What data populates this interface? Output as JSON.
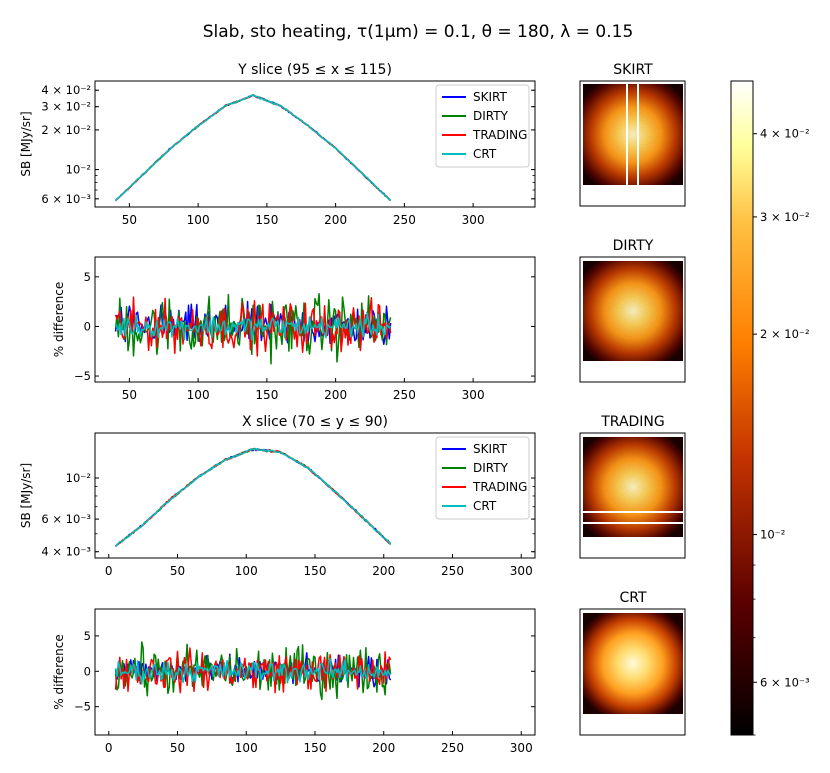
{
  "figure": {
    "suptitle": "Slab, sto heating, τ(1μm) = 0.1, θ = 180, λ = 0.15"
  },
  "colors": {
    "SKIRT": "#0000ff",
    "DIRTY": "#008000",
    "TRADING": "#ff0000",
    "CRT": "#00bfbf"
  },
  "chart_data": [
    {
      "id": "y_slice_sb",
      "type": "line",
      "title": "Y slice (95 ≤ x ≤ 115)",
      "xlabel": "",
      "ylabel": "SB [MJy/sr]",
      "yscale": "log",
      "xlim": [
        25,
        345
      ],
      "ylim": [
        0.0052,
        0.047
      ],
      "xticks": [
        50,
        100,
        150,
        200,
        250,
        300
      ],
      "yticks": [
        {
          "v": 0.04,
          "label": "4 × 10⁻²"
        },
        {
          "v": 0.03,
          "label": "3 × 10⁻²"
        },
        {
          "v": 0.02,
          "label": "2 × 10⁻²"
        },
        {
          "v": 0.01,
          "label": "10⁻²"
        },
        {
          "v": 0.006,
          "label": "6 × 10⁻³"
        }
      ],
      "legend": {
        "location": "upper right",
        "entries": [
          "SKIRT",
          "DIRTY",
          "TRADING",
          "CRT"
        ]
      },
      "series": [
        {
          "name": "SKIRT",
          "x": [
            40,
            60,
            80,
            100,
            120,
            140,
            160,
            180,
            200,
            220,
            240
          ],
          "values": [
            0.0058,
            0.0092,
            0.0145,
            0.0215,
            0.0305,
            0.0365,
            0.0305,
            0.0215,
            0.0145,
            0.0092,
            0.0058
          ]
        },
        {
          "name": "DIRTY",
          "x": [
            40,
            60,
            80,
            100,
            120,
            140,
            160,
            180,
            200,
            220,
            240
          ],
          "values": [
            0.0058,
            0.0092,
            0.0145,
            0.0215,
            0.0305,
            0.0365,
            0.0305,
            0.0215,
            0.0145,
            0.0092,
            0.0058
          ]
        },
        {
          "name": "TRADING",
          "x": [
            40,
            60,
            80,
            100,
            120,
            140,
            160,
            180,
            200,
            220,
            240
          ],
          "values": [
            0.0058,
            0.0092,
            0.0145,
            0.0215,
            0.0305,
            0.0365,
            0.0305,
            0.0215,
            0.0145,
            0.0092,
            0.0058
          ]
        },
        {
          "name": "CRT",
          "x": [
            40,
            60,
            80,
            100,
            120,
            140,
            160,
            180,
            200,
            220,
            240
          ],
          "values": [
            0.0058,
            0.0092,
            0.0145,
            0.0215,
            0.0305,
            0.0365,
            0.0305,
            0.0215,
            0.0145,
            0.0092,
            0.0058
          ]
        }
      ]
    },
    {
      "id": "y_slice_diff",
      "type": "line",
      "title": "",
      "xlabel": "",
      "ylabel": "% difference",
      "xlim": [
        25,
        345
      ],
      "ylim": [
        -5.6,
        7.0
      ],
      "xticks": [
        50,
        100,
        150,
        200,
        250,
        300
      ],
      "yticks": [
        {
          "v": 5,
          "label": "5"
        },
        {
          "v": 0,
          "label": "0"
        },
        {
          "v": -5,
          "label": "−5"
        }
      ],
      "series": [
        {
          "name": "SKIRT",
          "x": [
            40,
            240
          ],
          "values": [
            0,
            0
          ],
          "noise_amplitude": 3.0
        },
        {
          "name": "DIRTY",
          "x": [
            40,
            240
          ],
          "values": [
            0,
            0
          ],
          "noise_amplitude": 4.5
        },
        {
          "name": "TRADING",
          "x": [
            40,
            240
          ],
          "values": [
            0,
            0
          ],
          "noise_amplitude": 3.5
        },
        {
          "name": "CRT",
          "x": [
            40,
            240
          ],
          "values": [
            0,
            0
          ],
          "noise_amplitude": 1.6
        }
      ]
    },
    {
      "id": "x_slice_sb",
      "type": "line",
      "title": "X slice (70 ≤ y ≤ 90)",
      "xlabel": "",
      "ylabel": "SB [MJy/sr]",
      "yscale": "log",
      "xlim": [
        -10,
        310
      ],
      "ylim": [
        0.0037,
        0.0175
      ],
      "xticks": [
        0,
        50,
        100,
        150,
        200,
        250,
        300
      ],
      "yticks": [
        {
          "v": 0.01,
          "label": "10⁻²"
        },
        {
          "v": 0.006,
          "label": "6 × 10⁻³"
        },
        {
          "v": 0.004,
          "label": "4 × 10⁻³"
        }
      ],
      "legend": {
        "location": "upper right",
        "entries": [
          "SKIRT",
          "DIRTY",
          "TRADING",
          "CRT"
        ]
      },
      "series": [
        {
          "name": "SKIRT",
          "x": [
            5,
            25,
            45,
            65,
            85,
            105,
            125,
            145,
            165,
            185,
            205
          ],
          "values": [
            0.0043,
            0.0056,
            0.0077,
            0.0101,
            0.0126,
            0.0143,
            0.0138,
            0.0113,
            0.0084,
            0.0061,
            0.0044
          ]
        },
        {
          "name": "DIRTY",
          "x": [
            5,
            25,
            45,
            65,
            85,
            105,
            125,
            145,
            165,
            185,
            205
          ],
          "values": [
            0.0043,
            0.0056,
            0.0077,
            0.0101,
            0.0126,
            0.0143,
            0.0138,
            0.0113,
            0.0084,
            0.0061,
            0.0044
          ]
        },
        {
          "name": "TRADING",
          "x": [
            5,
            25,
            45,
            65,
            85,
            105,
            125,
            145,
            165,
            185,
            205
          ],
          "values": [
            0.0043,
            0.0056,
            0.0077,
            0.0101,
            0.0126,
            0.0143,
            0.0138,
            0.0113,
            0.0084,
            0.0061,
            0.0044
          ]
        },
        {
          "name": "CRT",
          "x": [
            5,
            25,
            45,
            65,
            85,
            105,
            125,
            145,
            165,
            185,
            205
          ],
          "values": [
            0.0043,
            0.0056,
            0.0077,
            0.0101,
            0.0126,
            0.0143,
            0.0138,
            0.0113,
            0.0084,
            0.0061,
            0.0044
          ]
        }
      ]
    },
    {
      "id": "x_slice_diff",
      "type": "line",
      "title": "",
      "xlabel": "",
      "ylabel": "% difference",
      "xlim": [
        -10,
        310
      ],
      "ylim": [
        -9.0,
        8.8
      ],
      "xticks": [
        0,
        50,
        100,
        150,
        200,
        250,
        300
      ],
      "yticks": [
        {
          "v": 5,
          "label": "5"
        },
        {
          "v": 0,
          "label": "0"
        },
        {
          "v": -5,
          "label": "−5"
        }
      ],
      "series": [
        {
          "name": "SKIRT",
          "x": [
            5,
            205
          ],
          "values": [
            0,
            0
          ],
          "noise_amplitude": 3.0
        },
        {
          "name": "DIRTY",
          "x": [
            5,
            205
          ],
          "values": [
            0,
            0
          ],
          "noise_amplitude": 5.0
        },
        {
          "name": "TRADING",
          "x": [
            5,
            205
          ],
          "values": [
            0,
            0
          ],
          "noise_amplitude": 4.0
        },
        {
          "name": "CRT",
          "x": [
            5,
            205
          ],
          "values": [
            0,
            0
          ],
          "noise_amplitude": 2.2
        }
      ]
    },
    {
      "id": "images",
      "type": "heatmap",
      "colormap": "afmhot",
      "panels": [
        {
          "title": "SKIRT",
          "markers": "vertical slice band"
        },
        {
          "title": "DIRTY",
          "markers": ""
        },
        {
          "title": "TRADING",
          "markers": "horizontal slice band"
        },
        {
          "title": "CRT",
          "markers": ""
        }
      ]
    },
    {
      "id": "colorbar",
      "type": "heatmap",
      "colormap": "afmhot",
      "scale": "log",
      "range": [
        0.005,
        0.048
      ],
      "ticks": [
        {
          "v": 0.04,
          "label": "4 × 10⁻²"
        },
        {
          "v": 0.03,
          "label": "3 × 10⁻²"
        },
        {
          "v": 0.02,
          "label": "2 × 10⁻²"
        },
        {
          "v": 0.01,
          "label": "10⁻²"
        },
        {
          "v": 0.006,
          "label": "6 × 10⁻³"
        }
      ]
    }
  ]
}
